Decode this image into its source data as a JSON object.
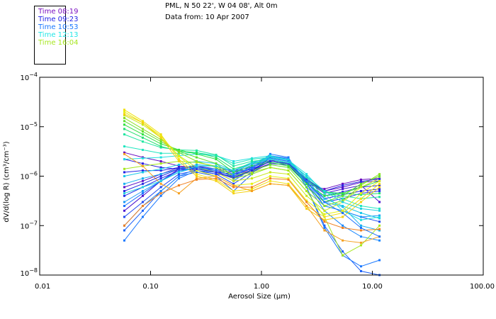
{
  "chart_data": {
    "type": "line",
    "title": "PML, N 50 22', W 04 08', Alt 0m",
    "subtitle": "Data from: 10 Apr 2007",
    "xlabel": "Aerosol Size (µm)",
    "ylabel": "dV/d(log R) (cm³/cm⁻³)",
    "xscale": "log",
    "yscale": "log",
    "xlim": [
      0.01,
      100
    ],
    "ylim": [
      1e-08,
      0.0001
    ],
    "grid": false,
    "legend_position": "top-left",
    "x_tick_labels": [
      "0.01",
      "0.10",
      "1.00",
      "10.00",
      "100.00"
    ],
    "x_ticks": [
      0.01,
      0.1,
      1,
      10,
      100
    ],
    "y_ticks": [
      0.0001,
      1e-05,
      1e-06,
      1e-07,
      1e-08
    ],
    "y_tick_exponents": [
      "-4",
      "-5",
      "-6",
      "-7",
      "-8"
    ],
    "legend": [
      {
        "label": "Time 08:19",
        "color": "#7a10c0"
      },
      {
        "label": "Time 09:23",
        "color": "#2222e6"
      },
      {
        "label": "Time 10:53",
        "color": "#1a78ff"
      },
      {
        "label": "Time 12:13",
        "color": "#22e6e6"
      },
      {
        "label": "Time 16:04",
        "color": "#a6e61e"
      }
    ],
    "x": [
      0.058,
      0.085,
      0.124,
      0.18,
      0.26,
      0.39,
      0.56,
      0.82,
      1.2,
      1.75,
      2.55,
      3.7,
      5.4,
      7.9,
      11.6
    ],
    "series": [
      {
        "name": "s01",
        "color": "#6a0cc0",
        "values": [
          3e-06,
          2.4e-06,
          2e-06,
          1.6e-06,
          1.5e-06,
          1.2e-06,
          1.1e-06,
          1.3e-06,
          1.8e-06,
          1.7e-06,
          7e-07,
          5.5e-07,
          7e-07,
          8.5e-07,
          9e-07
        ]
      },
      {
        "name": "s02",
        "color": "#5a10c8",
        "values": [
          6e-07,
          8e-07,
          1.1e-06,
          1.5e-06,
          1.6e-06,
          1.3e-06,
          1.2e-06,
          1.4e-06,
          2e-06,
          1.8e-06,
          8e-07,
          5e-07,
          6e-07,
          7.5e-07,
          8e-07
        ]
      },
      {
        "name": "s03",
        "color": "#4a14d0",
        "values": [
          2e-07,
          4e-07,
          8e-07,
          1.4e-06,
          1.6e-06,
          1.4e-06,
          1.3e-06,
          1.5e-06,
          2.1e-06,
          1.9e-06,
          8e-07,
          4.5e-07,
          5.5e-07,
          6.5e-07,
          3e-07
        ]
      },
      {
        "name": "s04",
        "color": "#2c1ee0",
        "values": [
          2.2e-06,
          1.8e-06,
          1.5e-06,
          1.4e-06,
          1.3e-06,
          1.1e-06,
          1e-06,
          1.2e-06,
          1.8e-06,
          1.7e-06,
          7e-07,
          4e-07,
          4.8e-07,
          6e-07,
          6.5e-07
        ]
      },
      {
        "name": "s05",
        "color": "#2222e6",
        "values": [
          1.2e-06,
          1.3e-06,
          1.3e-06,
          1.5e-06,
          1.5e-06,
          1.2e-06,
          1.1e-06,
          1.4e-06,
          2e-06,
          1.8e-06,
          7.5e-07,
          3.5e-07,
          4.2e-07,
          5e-07,
          5.5e-07
        ]
      },
      {
        "name": "s06",
        "color": "#2030e8",
        "values": [
          4e-07,
          6e-07,
          9e-07,
          1.3e-06,
          1.4e-06,
          1.2e-06,
          9e-07,
          1.3e-06,
          2.3e-06,
          2e-06,
          8e-07,
          3e-07,
          3.5e-07,
          4.5e-07,
          5e-07
        ]
      },
      {
        "name": "s07",
        "color": "#1e48f0",
        "values": [
          1.5e-07,
          3e-07,
          6e-07,
          1.1e-06,
          1.3e-06,
          1.1e-06,
          7e-07,
          1.2e-06,
          2.5e-06,
          2.2e-06,
          7e-07,
          2.5e-07,
          2e-07,
          1.5e-07,
          1.2e-07
        ]
      },
      {
        "name": "s08",
        "color": "#1a60f8",
        "values": [
          8e-08,
          2e-07,
          5e-07,
          1e-06,
          1.2e-06,
          1e-06,
          5e-07,
          1.1e-06,
          2.6e-06,
          2.3e-06,
          6e-07,
          1e-07,
          3e-08,
          1.2e-08,
          1e-08
        ]
      },
      {
        "name": "s09",
        "color": "#1a78ff",
        "values": [
          5e-08,
          1.5e-07,
          4e-07,
          9e-07,
          1.3e-06,
          1.2e-06,
          8e-07,
          1.4e-06,
          2.8e-06,
          2.4e-06,
          6e-07,
          9e-08,
          2.5e-08,
          1.5e-08,
          2e-08
        ]
      },
      {
        "name": "s10",
        "color": "#1a88ff",
        "values": [
          1e-07,
          2.5e-07,
          5e-07,
          1e-06,
          1.4e-06,
          1.3e-06,
          1e-06,
          1.6e-06,
          2.4e-06,
          2e-06,
          7e-07,
          2e-07,
          1e-07,
          6e-08,
          5e-08
        ]
      },
      {
        "name": "s11",
        "color": "#1898f8",
        "values": [
          3e-07,
          5e-07,
          8e-07,
          1.2e-06,
          1.5e-06,
          1.4e-06,
          1.1e-06,
          1.7e-06,
          2.5e-06,
          2.1e-06,
          8e-07,
          2.5e-07,
          2e-07,
          1.5e-07,
          1.6e-07
        ]
      },
      {
        "name": "s12",
        "color": "#18b0f0",
        "values": [
          7e-07,
          9e-07,
          1.1e-06,
          1.4e-06,
          1.7e-06,
          1.6e-06,
          1.2e-06,
          1.8e-06,
          2.6e-06,
          2.2e-06,
          9e-07,
          3e-07,
          2.4e-07,
          1e-07,
          8e-08
        ]
      },
      {
        "name": "s13",
        "color": "#1ac8e8",
        "values": [
          1e-06,
          1.2e-06,
          1.4e-06,
          1.7e-06,
          2e-06,
          1.8e-06,
          1.3e-06,
          1.9e-06,
          2.4e-06,
          2e-06,
          1e-06,
          3.5e-07,
          2.5e-07,
          1.8e-07,
          1.4e-07
        ]
      },
      {
        "name": "s14",
        "color": "#22e0e0",
        "values": [
          2.2e-06,
          2.3e-06,
          2.4e-06,
          2.6e-06,
          2.8e-06,
          2.6e-06,
          2e-06,
          2.3e-06,
          2.6e-06,
          2.1e-06,
          1.1e-06,
          4.5e-07,
          2e-07,
          1.3e-07,
          1.5e-07
        ]
      },
      {
        "name": "s15",
        "color": "#22e6c0",
        "values": [
          4e-06,
          3.4e-06,
          2.9e-06,
          2.9e-06,
          3e-06,
          2.6e-06,
          1.8e-06,
          2.2e-06,
          2.4e-06,
          2e-06,
          1e-06,
          5e-07,
          3.5e-07,
          2.5e-07,
          2.2e-07
        ]
      },
      {
        "name": "s16",
        "color": "#20e6a0",
        "values": [
          7e-06,
          5e-06,
          3.8e-06,
          3.4e-06,
          3.3e-06,
          2.7e-06,
          1.6e-06,
          2e-06,
          2.2e-06,
          1.8e-06,
          9e-07,
          5e-07,
          4e-07,
          3.5e-07,
          3.8e-07
        ]
      },
      {
        "name": "s17",
        "color": "#22e070",
        "values": [
          9e-06,
          6e-06,
          4e-06,
          3.2e-06,
          3e-06,
          2.4e-06,
          1.4e-06,
          1.8e-06,
          2e-06,
          1.7e-06,
          8e-07,
          4.8e-07,
          4.5e-07,
          4.2e-07,
          4.5e-07
        ]
      },
      {
        "name": "s18",
        "color": "#30e040",
        "values": [
          1.1e-05,
          7e-06,
          4.5e-06,
          3.4e-06,
          2.8e-06,
          2.2e-06,
          1.2e-06,
          1.6e-06,
          1.9e-06,
          1.6e-06,
          7e-07,
          4e-07,
          4.5e-07,
          6e-07,
          8e-07
        ]
      },
      {
        "name": "s19",
        "color": "#60e030",
        "values": [
          1.3e-05,
          8e-06,
          5e-06,
          3.2e-06,
          2.4e-06,
          1.8e-06,
          1e-06,
          1.3e-06,
          1.7e-06,
          1.5e-06,
          6e-07,
          3e-07,
          4e-07,
          7e-07,
          1e-06
        ]
      },
      {
        "name": "s20",
        "color": "#8ce020",
        "values": [
          1.5e-05,
          9e-06,
          5.5e-06,
          3e-06,
          2e-06,
          1.5e-06,
          9e-07,
          1.1e-06,
          1.5e-06,
          1.3e-06,
          5e-07,
          2.5e-07,
          3.2e-07,
          6.5e-07,
          1.1e-06
        ]
      },
      {
        "name": "s21",
        "color": "#a6e61e",
        "values": [
          1.4e-06,
          1.6e-06,
          1.8e-06,
          2e-06,
          1.9e-06,
          1.6e-06,
          1e-06,
          1.2e-06,
          1.5e-06,
          1.3e-06,
          5e-07,
          1.5e-07,
          2.5e-08,
          4e-08,
          1e-07
        ]
      },
      {
        "name": "s22",
        "color": "#c8e818",
        "values": [
          1.7e-05,
          1.1e-05,
          6e-06,
          2.6e-06,
          1.5e-06,
          1.2e-06,
          8e-07,
          9e-07,
          1.2e-06,
          1.1e-06,
          4e-07,
          2e-07,
          3e-07,
          6e-07,
          9e-07
        ]
      },
      {
        "name": "s23",
        "color": "#e6f010",
        "values": [
          2e-05,
          1.2e-05,
          6.5e-06,
          2.5e-06,
          1.3e-06,
          1e-06,
          6.5e-07,
          7e-07,
          1e-06,
          9e-07,
          3.2e-07,
          1.7e-07,
          2e-07,
          4.5e-07,
          8e-07
        ]
      },
      {
        "name": "s24",
        "color": "#f0e010",
        "values": [
          2.2e-05,
          1.3e-05,
          7e-06,
          2.2e-06,
          1.1e-06,
          8.5e-07,
          5e-07,
          5.5e-07,
          8e-07,
          7e-07,
          2.5e-07,
          1.5e-07,
          1.8e-07,
          3.5e-07,
          7e-07
        ]
      },
      {
        "name": "s25",
        "color": "#f5d010",
        "values": [
          1.8e-05,
          1.2e-05,
          6e-06,
          2e-06,
          1e-06,
          8e-07,
          4.5e-07,
          5e-07,
          7e-07,
          6.5e-07,
          2.2e-07,
          1.3e-07,
          1.5e-07,
          3e-07,
          6e-07
        ]
      },
      {
        "name": "s26",
        "color": "#f5a020",
        "values": [
          2.8e-06,
          1.6e-06,
          7e-07,
          4.5e-07,
          9e-07,
          1e-06,
          6.5e-07,
          5e-07,
          7e-07,
          6.5e-07,
          2.5e-07,
          8e-08,
          5e-08,
          4.5e-08,
          6e-08
        ]
      },
      {
        "name": "s27",
        "color": "#f08020",
        "values": [
          1e-07,
          2.5e-07,
          4.5e-07,
          6.5e-07,
          8.5e-07,
          9e-07,
          6e-07,
          6e-07,
          9e-07,
          8.5e-07,
          3e-07,
          1.2e-07,
          9e-08,
          8e-08,
          8.5e-08
        ]
      },
      {
        "name": "s28",
        "color": "#2a2ae0",
        "values": [
          5e-07,
          7e-07,
          1e-06,
          1.4e-06,
          1.4e-06,
          1.2e-06,
          9.5e-07,
          1.3e-06,
          2e-06,
          1.8e-06,
          8.5e-07,
          5e-07,
          6.5e-07,
          7.8e-07,
          8.8e-07
        ]
      },
      {
        "name": "s29",
        "color": "#1a70ff",
        "values": [
          2.5e-07,
          4.5e-07,
          8e-07,
          1.3e-06,
          1.5e-06,
          1.3e-06,
          1e-06,
          1.5e-06,
          2.3e-06,
          2e-06,
          8e-07,
          3e-07,
          1.8e-07,
          9e-08,
          6e-08
        ]
      },
      {
        "name": "s30",
        "color": "#20d0e0",
        "values": [
          4.5e-07,
          6e-07,
          8e-07,
          1.2e-06,
          1.6e-06,
          1.6e-06,
          1.3e-06,
          1.8e-06,
          2.2e-06,
          1.9e-06,
          1e-06,
          5e-07,
          3e-07,
          2.2e-07,
          2e-07
        ]
      }
    ]
  }
}
